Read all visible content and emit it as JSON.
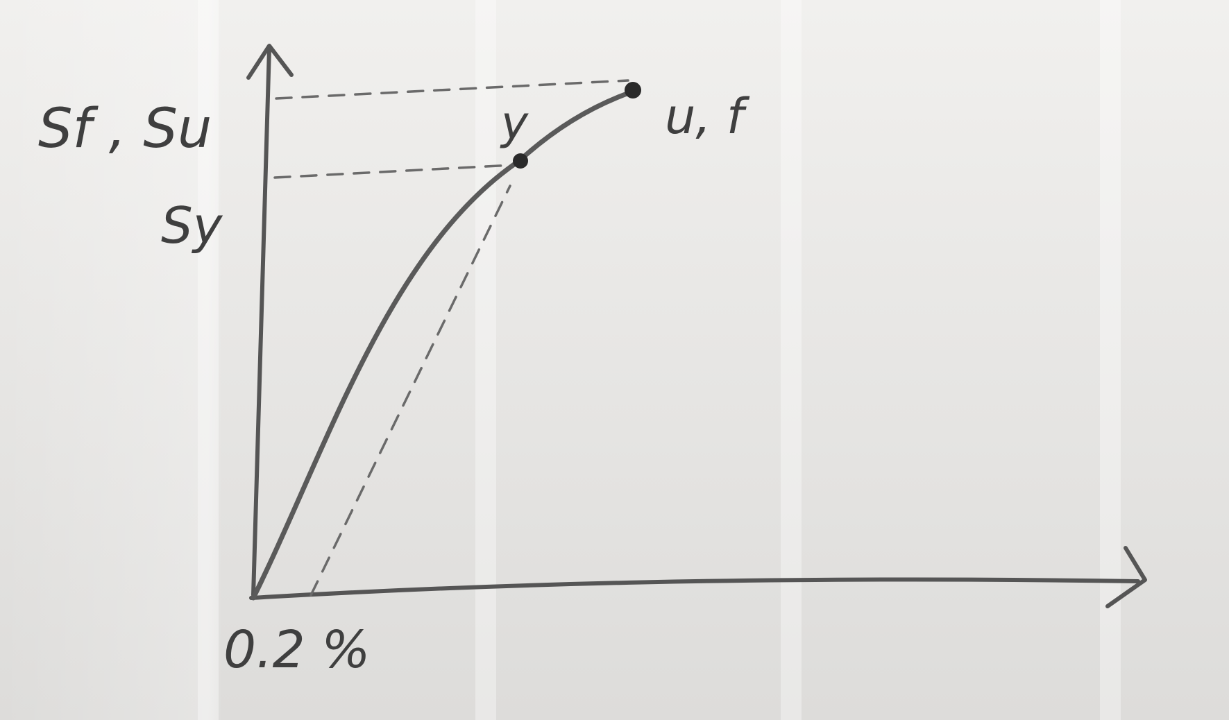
{
  "labels": {
    "y_axis_top": "Sf , Su",
    "y_axis_yield": "Sy",
    "yield_point": "y",
    "ultimate_point": "u, f",
    "offset": "0.2 %"
  }
}
